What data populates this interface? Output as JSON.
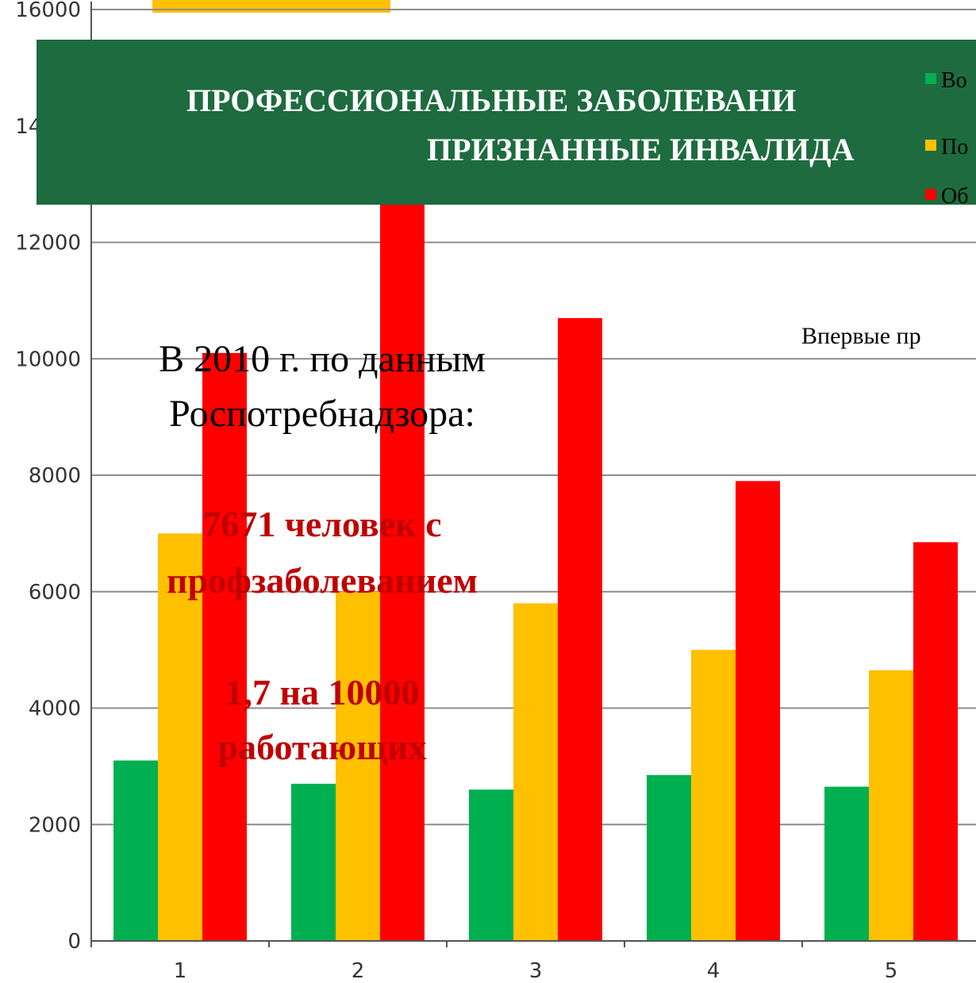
{
  "chart_data": {
    "type": "bar",
    "categories": [
      "1",
      "2",
      "3",
      "4",
      "5"
    ],
    "series": [
      {
        "name": "Во",
        "color": "#00b050",
        "values": [
          3100,
          2700,
          2600,
          2850,
          2650
        ]
      },
      {
        "name": "По",
        "color": "#ffc000",
        "values": [
          7000,
          6000,
          5800,
          5000,
          4650
        ]
      },
      {
        "name": "Об",
        "color": "#ff0000",
        "values": [
          10100,
          13800,
          10700,
          7900,
          6850
        ]
      }
    ],
    "ylim": [
      0,
      16000
    ],
    "yticks": [
      0,
      2000,
      4000,
      6000,
      8000,
      10000,
      12000,
      14000,
      16000
    ],
    "grid": true
  },
  "slide": {
    "title": [
      "ПРОФЕССИОНАЛЬНЫЕ ЗАБОЛЕВАНИ",
      "ПРИЗНАННЫЕ ИНВАЛИДА"
    ],
    "note": "Впервые пр",
    "source": [
      "В 2010 г. по данным",
      "Роспотребнадзора:"
    ],
    "facts": [
      "7671 человек с",
      "профзаболеванием",
      "1,7 на 10000",
      "работающих"
    ]
  }
}
